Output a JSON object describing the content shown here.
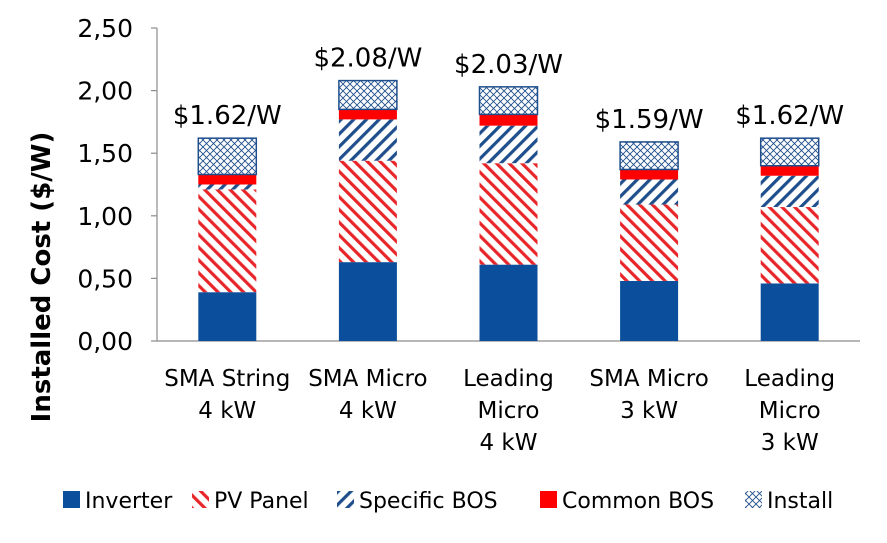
{
  "chart_data": {
    "type": "bar",
    "stacked": true,
    "title": "",
    "xlabel": "",
    "ylabel": "Installed Cost ($/W)",
    "ylim": [
      0,
      2.5
    ],
    "yticks": [
      "0,00",
      "0,50",
      "1,00",
      "1,50",
      "2,00",
      "2,50"
    ],
    "grid": false,
    "legend_position": "bottom",
    "categories": [
      [
        "SMA String",
        "4 kW"
      ],
      [
        "SMA Micro",
        "4 kW"
      ],
      [
        "Leading",
        "Micro",
        "4 kW"
      ],
      [
        "SMA Micro",
        "3 kW"
      ],
      [
        "Leading",
        "Micro",
        "3 kW"
      ]
    ],
    "totals_labels": [
      "$1.62/W",
      "$2.08/W",
      "$2.03/W",
      "$1.59/W",
      "$1.62/W"
    ],
    "series": [
      {
        "name": "Inverter",
        "pattern": "solid",
        "color": "#0B4F9C",
        "values": [
          0.39,
          0.63,
          0.61,
          0.48,
          0.46
        ]
      },
      {
        "name": "PV Panel",
        "pattern": "diagonal",
        "color": "#E8262A",
        "values": [
          0.82,
          0.81,
          0.81,
          0.61,
          0.61
        ]
      },
      {
        "name": "Specific BOS",
        "pattern": "diagonal",
        "color": "#1F4E8C",
        "values": [
          0.04,
          0.33,
          0.3,
          0.2,
          0.25
        ]
      },
      {
        "name": "Common BOS",
        "pattern": "solid",
        "color": "#FF0000",
        "values": [
          0.08,
          0.08,
          0.09,
          0.08,
          0.08
        ]
      },
      {
        "name": "Install",
        "pattern": "crosshatch",
        "color": "#1F4E8C",
        "values": [
          0.29,
          0.23,
          0.22,
          0.22,
          0.22
        ]
      }
    ]
  }
}
